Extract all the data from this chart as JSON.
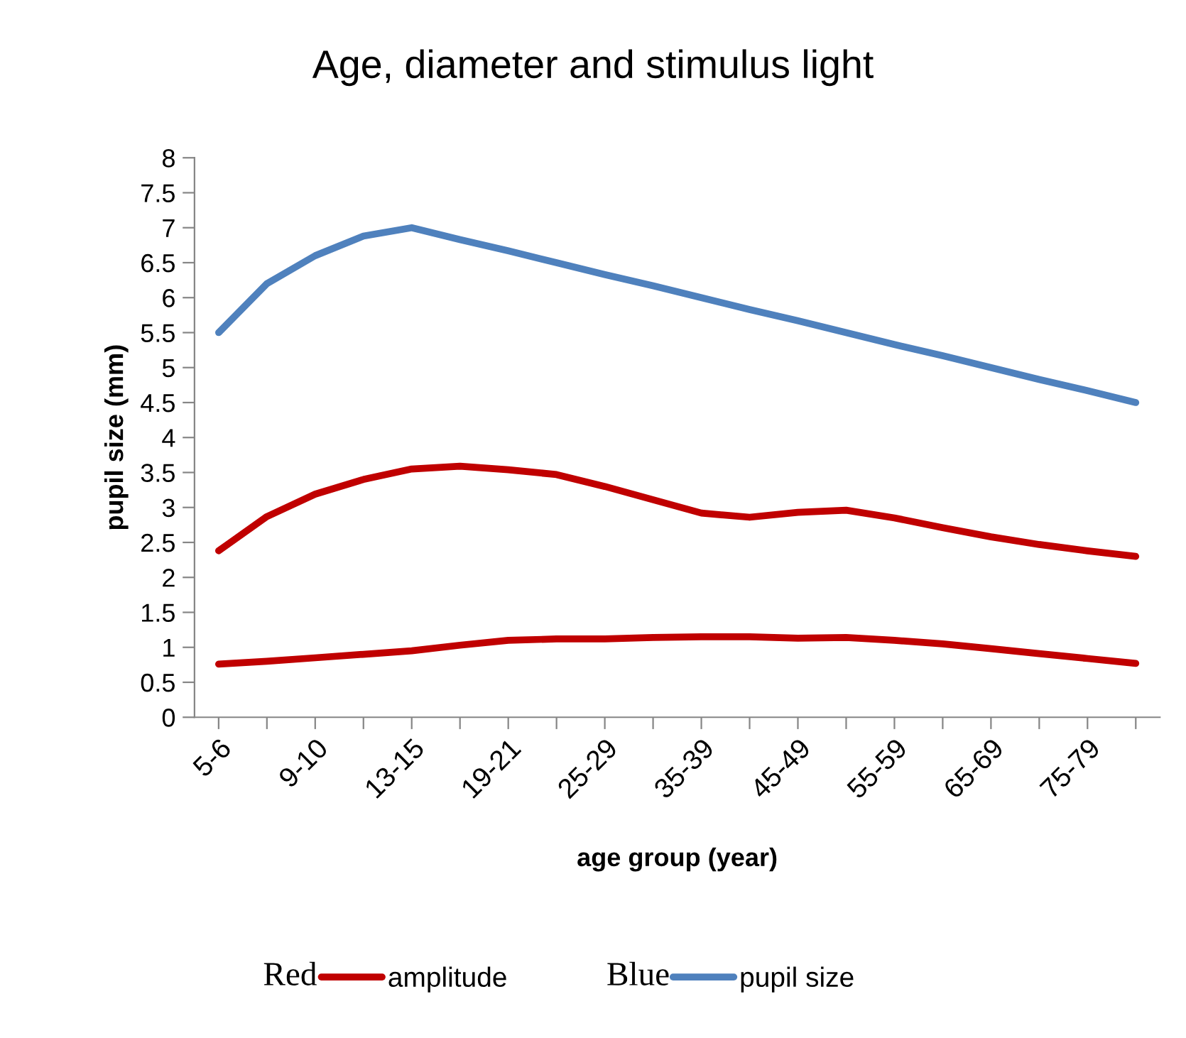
{
  "chart_data": {
    "type": "line",
    "title": "Age, diameter and stimulus light",
    "xlabel": "age group (year)",
    "ylabel": "pupil size (mm)",
    "categories": [
      "5-6",
      null,
      "9-10",
      null,
      "13-15",
      null,
      "19-21",
      null,
      "25-29",
      null,
      "35-39",
      null,
      "45-49",
      null,
      "55-59",
      null,
      "65-69",
      null,
      "75-79",
      null
    ],
    "series": [
      {
        "name": "amplitude",
        "color": "#c00000",
        "values": [
          0.76,
          0.8,
          0.85,
          0.9,
          0.95,
          1.03,
          1.1,
          1.12,
          1.12,
          1.14,
          1.15,
          1.15,
          1.13,
          1.14,
          1.1,
          1.05,
          0.98,
          0.91,
          0.84,
          0.77
        ]
      },
      {
        "color": "#c00000",
        "values": [
          2.38,
          2.87,
          3.19,
          3.4,
          3.55,
          3.59,
          3.54,
          3.47,
          3.3,
          3.11,
          2.92,
          2.86,
          2.93,
          2.96,
          2.85,
          2.71,
          2.58,
          2.47,
          2.38,
          2.3
        ]
      },
      {
        "name": "pupil size",
        "color": "#4f81bd",
        "values": [
          5.5,
          6.2,
          6.6,
          6.88,
          7.0,
          6.83,
          6.67,
          6.5,
          6.33,
          6.17,
          6.0,
          5.83,
          5.67,
          5.5,
          5.33,
          5.17,
          5.0,
          4.83,
          4.67,
          4.5
        ]
      }
    ],
    "annotations": [
      "Red",
      "Blue"
    ],
    "legend": "bottom",
    "ylim": [
      0,
      8
    ],
    "yticks": [
      0,
      0.5,
      1,
      1.5,
      2,
      2.5,
      3,
      3.5,
      4,
      4.5,
      5,
      5.5,
      6,
      6.5,
      7,
      7.5,
      8
    ],
    "grid": false
  }
}
